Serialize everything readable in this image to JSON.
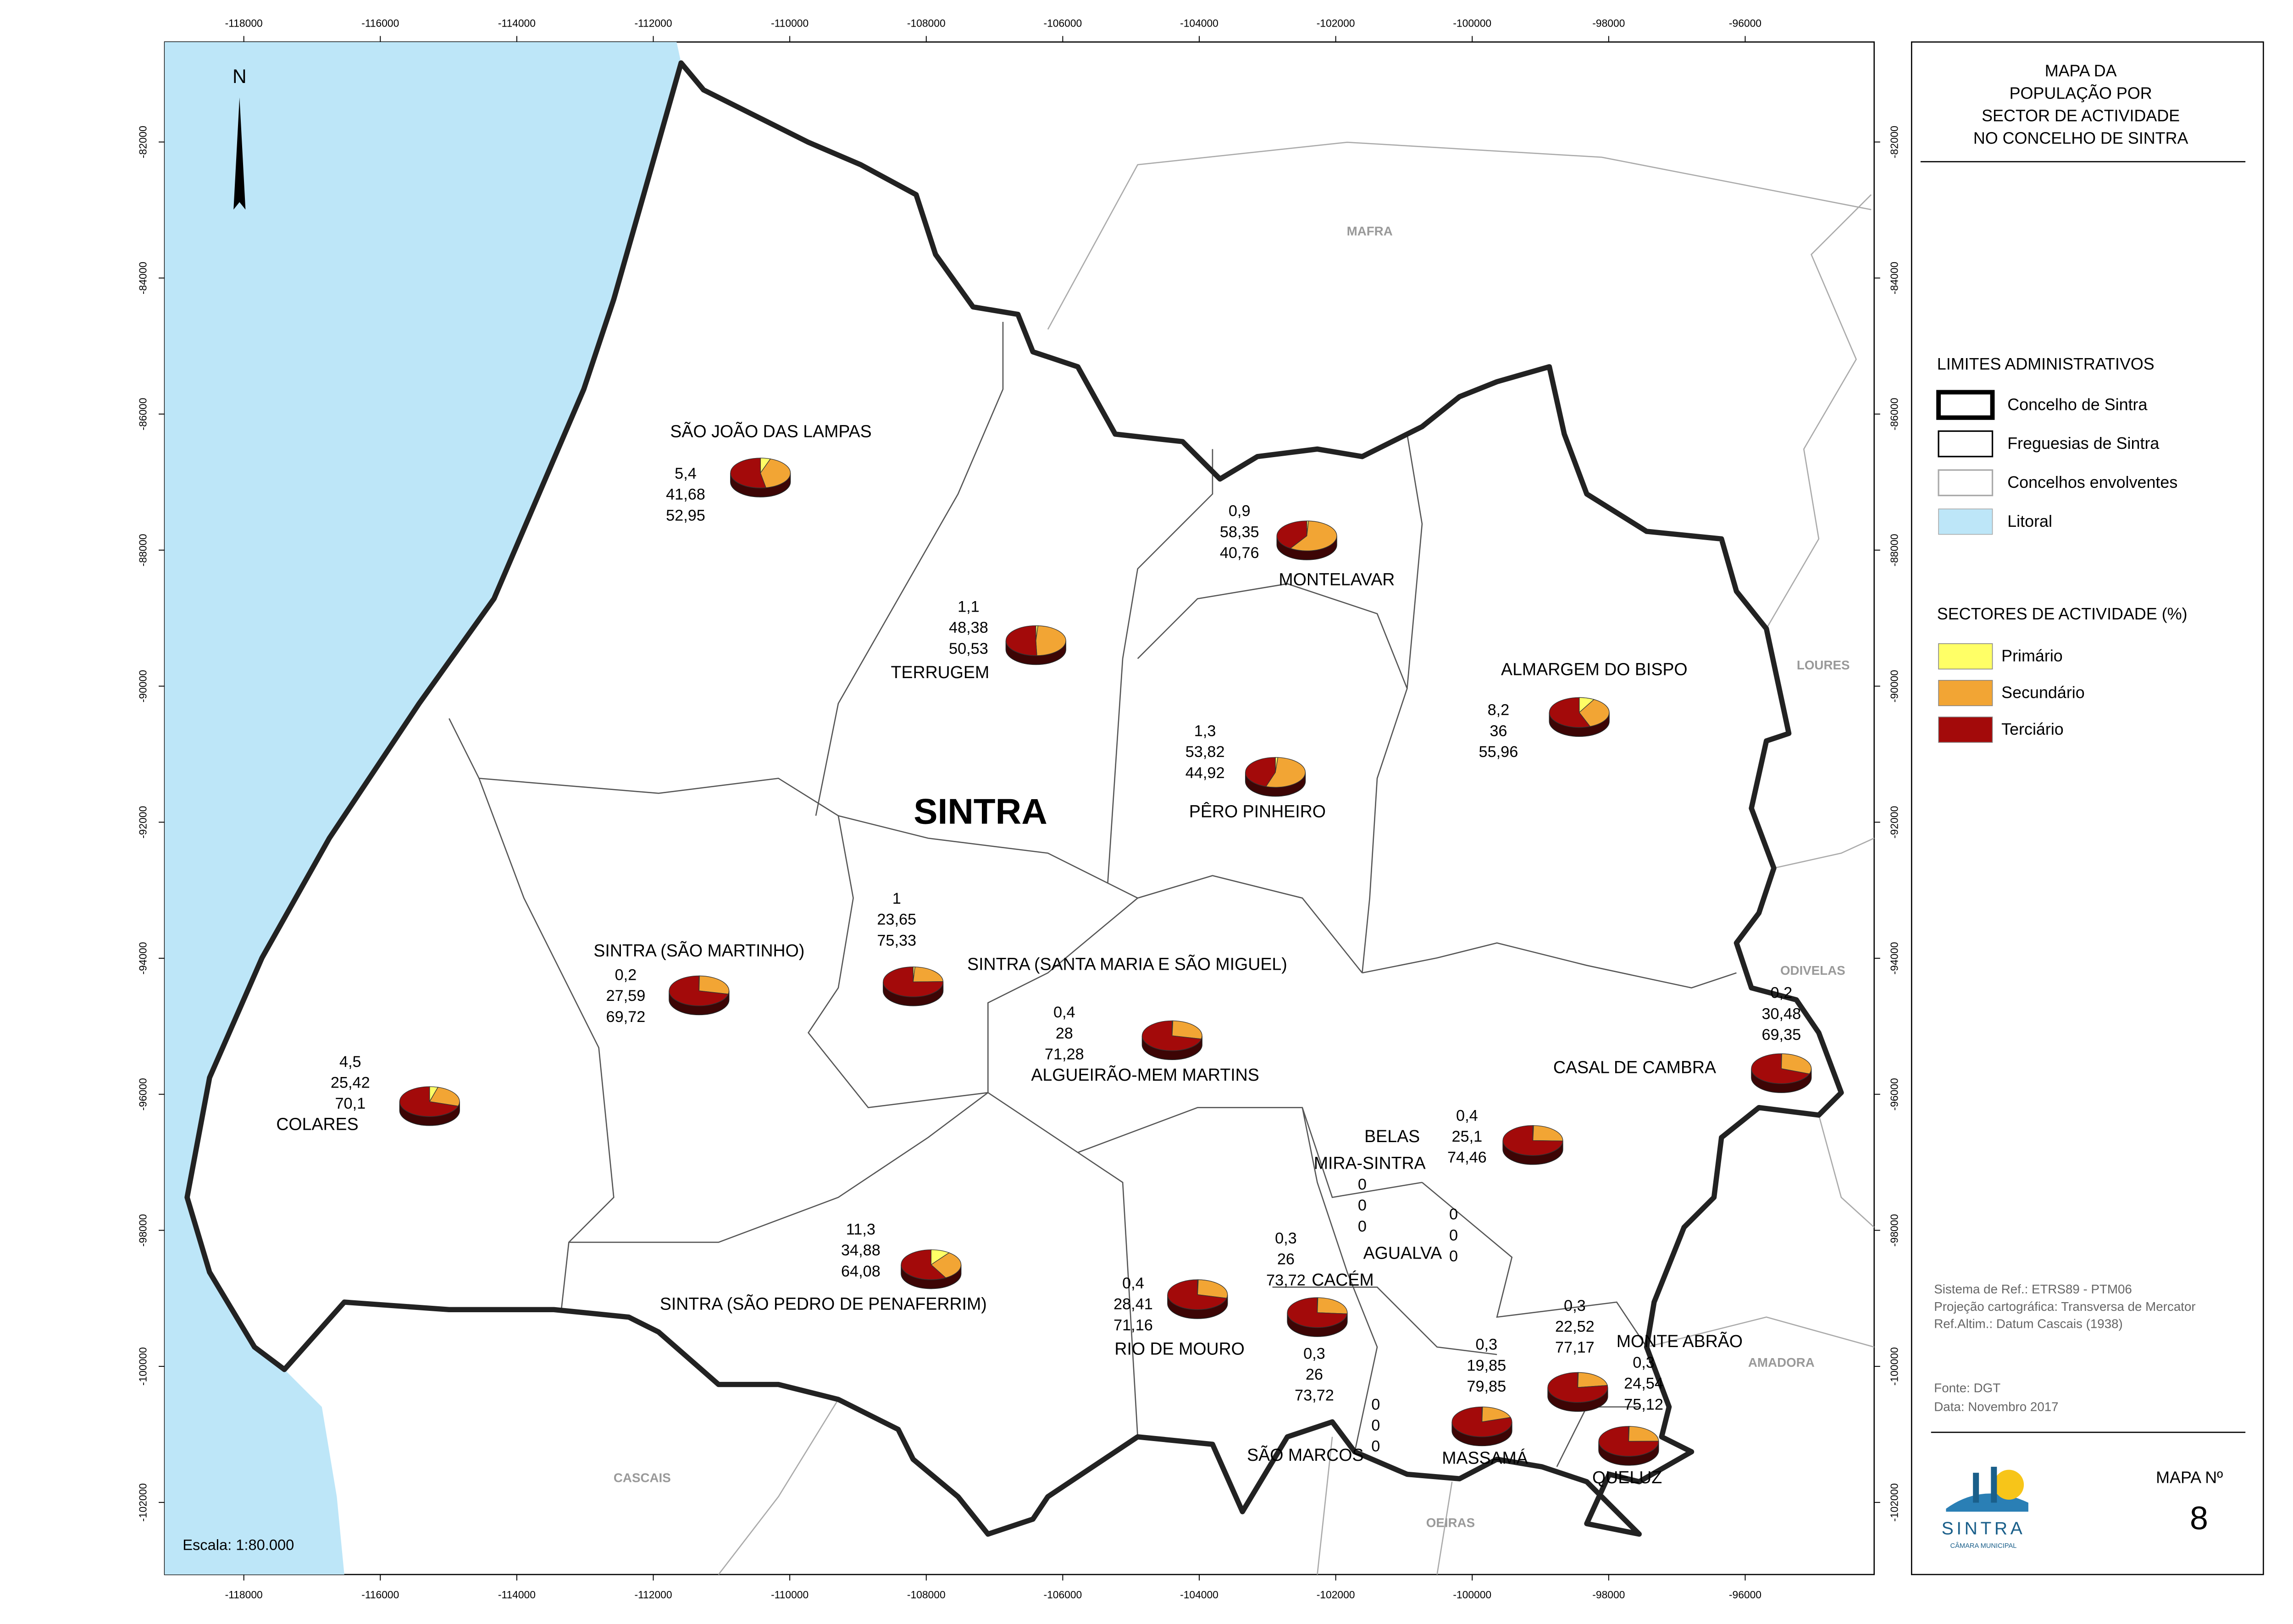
{
  "title": [
    "MAPA DA",
    "POPULAÇÃO POR",
    "SECTOR DE ACTIVIDADE",
    "NO CONCELHO DE SINTRA"
  ],
  "map": {
    "xlim": [
      -119160,
      -94110
    ],
    "ylim": [
      -103060,
      -80530
    ],
    "xticks": [
      -118000,
      -116000,
      -114000,
      -112000,
      -110000,
      -108000,
      -106000,
      -104000,
      -102000,
      -100000,
      -98000,
      -96000
    ],
    "yticks": [
      -82000,
      -84000,
      -86000,
      -88000,
      -90000,
      -92000,
      -94000,
      -96000,
      -98000,
      -100000,
      -102000
    ],
    "municipality": "SINTRA",
    "north": "N",
    "scale": "Escala: 1:80.000",
    "neighbors": [
      "MAFRA",
      "LOURES",
      "ODIVELAS",
      "AMADORA",
      "OEIRAS",
      "CASCAIS"
    ]
  },
  "legend": {
    "limits_title": "LIMITES ADMINISTRATIVOS",
    "limits": [
      "Concelho de Sintra",
      "Freguesias de Sintra",
      "Concelhos envolventes",
      "Litoral"
    ],
    "sectors_title": "SECTORES DE ACTIVIDADE (%)",
    "sectors": [
      {
        "name": "Primário",
        "color": "#ffff66"
      },
      {
        "name": "Secundário",
        "color": "#f2a534"
      },
      {
        "name": "Terciário",
        "color": "#a30a0a"
      }
    ]
  },
  "parishes": [
    {
      "name": "SÃO JOÃO DAS LAMPAS",
      "values": [
        5.4,
        41.68,
        52.95
      ],
      "value_labels": [
        "5,4",
        "41,68",
        "52,95"
      ]
    },
    {
      "name": "TERRUGEM",
      "values": [
        1.1,
        48.38,
        50.53
      ],
      "value_labels": [
        "1,1",
        "48,38",
        "50,53"
      ]
    },
    {
      "name": "MONTELAVAR",
      "values": [
        0.9,
        58.35,
        40.76
      ],
      "value_labels": [
        "0,9",
        "58,35",
        "40,76"
      ]
    },
    {
      "name": "ALMARGEM DO BISPO",
      "values": [
        8.2,
        36,
        55.96
      ],
      "value_labels": [
        "8,2",
        "36",
        "55,96"
      ]
    },
    {
      "name": "PÊRO PINHEIRO",
      "values": [
        1.3,
        53.82,
        44.92
      ],
      "value_labels": [
        "1,3",
        "53,82",
        "44,92"
      ]
    },
    {
      "name": "SINTRA (SÃO MARTINHO)",
      "values": [
        0.2,
        27.59,
        69.72
      ],
      "value_labels": [
        "0,2",
        "27,59",
        "69,72"
      ]
    },
    {
      "name": "SINTRA (SANTA MARIA E SÃO MIGUEL)",
      "values": [
        1,
        23.65,
        75.33
      ],
      "value_labels": [
        "1",
        "23,65",
        "75,33"
      ]
    },
    {
      "name": "ALGUEIRÃO-MEM MARTINS",
      "values": [
        0.4,
        28,
        71.28
      ],
      "value_labels": [
        "0,4",
        "28",
        "71,28"
      ]
    },
    {
      "name": "COLARES",
      "values": [
        4.5,
        25.42,
        70.1
      ],
      "value_labels": [
        "4,5",
        "25,42",
        "70,1"
      ]
    },
    {
      "name": "CASAL DE CAMBRA",
      "values": [
        0.2,
        30.48,
        69.35
      ],
      "value_labels": [
        "0,2",
        "30,48",
        "69,35"
      ]
    },
    {
      "name": "BELAS",
      "values": [
        0.4,
        25.1,
        74.46
      ],
      "value_labels": [
        "0,4",
        "25,1",
        "74,46"
      ]
    },
    {
      "name": "MIRA-SINTRA",
      "values": [
        0,
        0,
        0
      ],
      "value_labels": [
        "0",
        "0",
        "0"
      ]
    },
    {
      "name": "AGUALVA",
      "values": [
        0,
        0,
        0
      ],
      "value_labels": [
        "0",
        "0",
        "0"
      ]
    },
    {
      "name": "CACÉM",
      "values": [
        0.3,
        26,
        73.72
      ],
      "value_labels": [
        "0,3",
        "26",
        "73,72"
      ]
    },
    {
      "name": "SINTRA (SÃO PEDRO DE PENAFERRIM)",
      "values": [
        11.3,
        34.88,
        64.08
      ],
      "value_labels": [
        "11,3",
        "34,88",
        "64,08"
      ]
    },
    {
      "name": "RIO DE MOURO",
      "values": [
        0.4,
        28.41,
        71.16
      ],
      "value_labels": [
        "0,4",
        "28,41",
        "71,16"
      ]
    },
    {
      "name": "SÃO MARCOS",
      "values": [
        0,
        0,
        0
      ],
      "value_labels": [
        "0",
        "0",
        "0"
      ]
    },
    {
      "values": [
        0.3,
        26,
        73.72
      ],
      "value_labels": [
        "0,3",
        "26",
        "73,72"
      ]
    },
    {
      "name": "MASSAMÁ",
      "values": [
        0.3,
        19.85,
        79.85
      ],
      "value_labels": [
        "0,3",
        "19,85",
        "79,85"
      ]
    },
    {
      "name": "MONTE ABRÃO",
      "values": [
        0.3,
        22.52,
        77.17
      ],
      "value_labels": [
        "0,3",
        "22,52",
        "77,17"
      ]
    },
    {
      "name": "QUELUZ",
      "values": [
        0.3,
        24.54,
        75.12
      ],
      "value_labels": [
        "0,3",
        "24,54",
        "75,12"
      ]
    }
  ],
  "notes": [
    "Sistema de Ref.: ETRS89 - PTM06",
    "Projeção cartográfica: Transversa de Mercator",
    "Ref.Altim.: Datum Cascais (1938)"
  ],
  "source": [
    "Fonte: DGT",
    "Data: Novembro 2017"
  ],
  "map_number": {
    "label": "MAPA Nº",
    "value": 8
  },
  "logo": {
    "name": "SINTRA",
    "subtitle": "CÂMARA MUNICIPAL"
  }
}
